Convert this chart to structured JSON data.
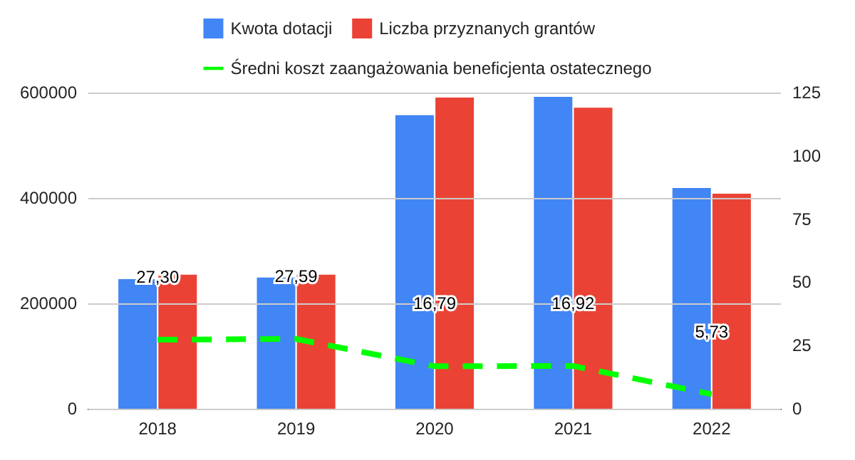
{
  "chart_data": {
    "type": "bar",
    "categories": [
      "2018",
      "2019",
      "2020",
      "2021",
      "2022"
    ],
    "series": [
      {
        "name": "Kwota dotacji",
        "color": "#4285f4",
        "values": [
          246000,
          249000,
          557000,
          592000,
          419000
        ]
      },
      {
        "name": "Liczba przyznanych grantów",
        "color": "#ea4335",
        "axis": "y2",
        "values": [
          53,
          53,
          123,
          119,
          85
        ]
      },
      {
        "name": "Średni koszt zaangażowania beneficjenta ostatecznego",
        "type": "line",
        "color": "#00ff00",
        "axis": "y2",
        "line_style": "dashed",
        "marker": "none",
        "values": [
          27.3,
          27.59,
          16.79,
          16.92,
          5.73
        ],
        "value_labels": [
          "27,30",
          "27,59",
          "16,79",
          "16,92",
          "5,73"
        ]
      }
    ],
    "ylim": [
      0,
      600000
    ],
    "yticks": [
      0,
      200000,
      400000,
      600000
    ],
    "y2lim": [
      0,
      125
    ],
    "y2ticks": [
      0,
      25,
      50,
      75,
      100,
      125
    ],
    "grid": "y",
    "legend": "top"
  }
}
